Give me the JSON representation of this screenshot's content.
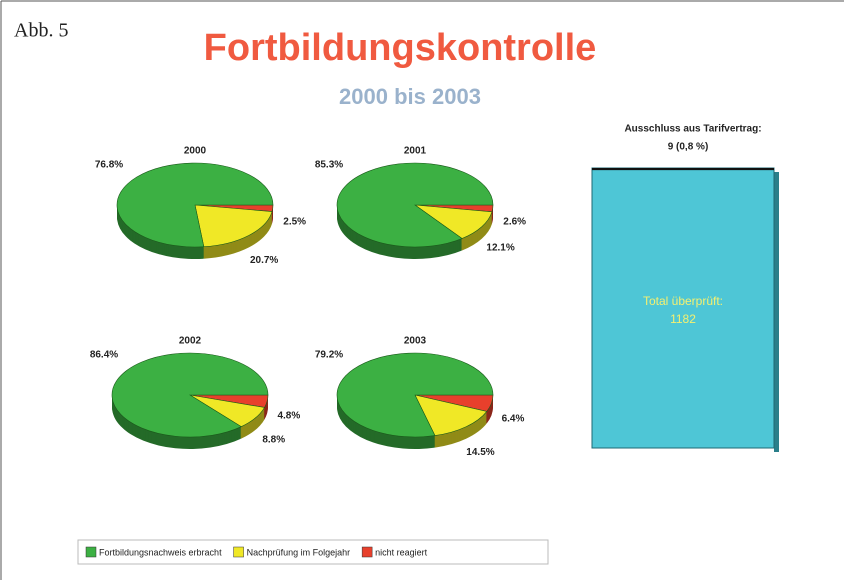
{
  "figure_label": "Abb. 5",
  "title": "Fortbildungskontrolle",
  "subtitle": "2000 bis 2003",
  "chart_data": [
    {
      "type": "pie",
      "title": "2000",
      "categories": [
        "Fortbildungsnachweis erbracht",
        "Nachprüfung im Folgejahr",
        "nicht reagiert"
      ],
      "colors": [
        "#3cb043",
        "#f0e826",
        "#e8402c"
      ],
      "values": [
        76.8,
        20.7,
        2.5
      ],
      "value_labels": [
        "76.8%",
        "20.7%",
        "2.5%"
      ]
    },
    {
      "type": "pie",
      "title": "2001",
      "categories": [
        "Fortbildungsnachweis erbracht",
        "Nachprüfung im Folgejahr",
        "nicht reagiert"
      ],
      "colors": [
        "#3cb043",
        "#f0e826",
        "#e8402c"
      ],
      "values": [
        85.3,
        12.1,
        2.6
      ],
      "value_labels": [
        "85.3%",
        "12.1%",
        "2.6%"
      ]
    },
    {
      "type": "pie",
      "title": "2002",
      "categories": [
        "Fortbildungsnachweis erbracht",
        "Nachprüfung im Folgejahr",
        "nicht reagiert"
      ],
      "colors": [
        "#3cb043",
        "#f0e826",
        "#e8402c"
      ],
      "values": [
        86.4,
        8.8,
        4.8
      ],
      "value_labels": [
        "86.4%",
        "8.8%",
        "4.8%"
      ]
    },
    {
      "type": "pie",
      "title": "2003",
      "categories": [
        "Fortbildungsnachweis erbracht",
        "Nachprüfung im Folgejahr",
        "nicht reagiert"
      ],
      "colors": [
        "#3cb043",
        "#f0e826",
        "#e8402c"
      ],
      "values": [
        79.2,
        14.5,
        6.4
      ],
      "value_labels": [
        "79.2%",
        "14.5%",
        "6.4%"
      ]
    },
    {
      "type": "bar",
      "series": [
        {
          "name": "Total überprüft:",
          "color": "#4ec6d6",
          "values": [
            1182
          ]
        },
        {
          "name": "Ausschluss aus Tarifvertrag:",
          "color": "#111111",
          "values": [
            9
          ],
          "value_labels": [
            "9 (0,8 %)"
          ]
        }
      ]
    }
  ]
}
